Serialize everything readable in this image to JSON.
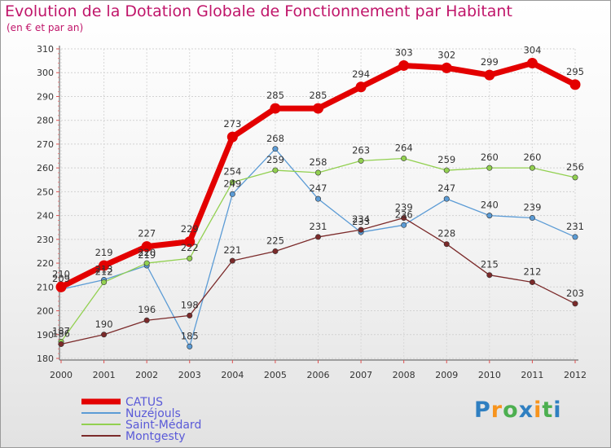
{
  "chart_data": {
    "type": "line",
    "title": "Evolution de la Dotation Globale de Fonctionnement par Habitant",
    "subtitle": "(en € et par an)",
    "xlabel": "",
    "ylabel": "",
    "ylim": [
      180,
      310
    ],
    "y_ticks": [
      180,
      190,
      200,
      210,
      220,
      230,
      240,
      250,
      260,
      270,
      280,
      290,
      300,
      310
    ],
    "x": [
      "2000",
      "2001",
      "2002",
      "2003",
      "2004",
      "2005",
      "2006",
      "2007",
      "2008",
      "2009",
      "2010",
      "2011",
      "2012"
    ],
    "series": [
      {
        "name": "CATUS",
        "color": "#e30000",
        "emphasis": true,
        "values": [
          210,
          219,
          227,
          229,
          273,
          285,
          285,
          294,
          303,
          302,
          299,
          304,
          295
        ]
      },
      {
        "name": "Nuzéjouls",
        "color": "#5b9bd5",
        "emphasis": false,
        "values": [
          209,
          213,
          219,
          185,
          249,
          268,
          247,
          233,
          236,
          247,
          240,
          239,
          231
        ]
      },
      {
        "name": "Saint-Médard",
        "color": "#92d050",
        "emphasis": false,
        "values": [
          187,
          212,
          220,
          222,
          254,
          259,
          258,
          263,
          264,
          259,
          260,
          260,
          256
        ]
      },
      {
        "name": "Montgesty",
        "color": "#7b2a2a",
        "emphasis": false,
        "values": [
          186,
          190,
          196,
          198,
          221,
          225,
          231,
          234,
          239,
          228,
          215,
          212,
          203
        ]
      }
    ]
  },
  "logo": {
    "letters": [
      "P",
      "r",
      "o",
      "x",
      "i",
      "t",
      "i"
    ],
    "colors": [
      "#2f7fc1",
      "#f7941d",
      "#4caf50",
      "#2f7fc1",
      "#f7941d",
      "#4caf50",
      "#2f7fc1"
    ]
  }
}
